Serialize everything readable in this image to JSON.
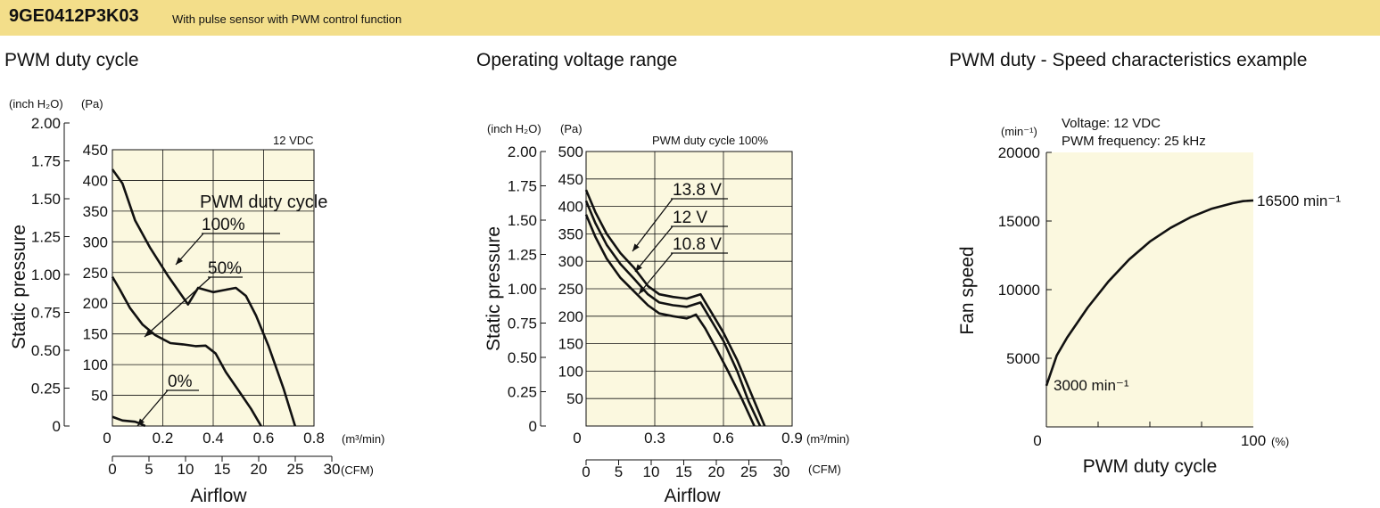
{
  "header": {
    "model": "9GE0412P3K03",
    "subtitle": "With pulse sensor with PWM control function",
    "color": "#f3de8a"
  },
  "chart_data": [
    {
      "type": "line",
      "title": "PWM duty cycle",
      "xlabel": "Airflow",
      "ylabel": "Static pressure",
      "unit_note": "12 VDC",
      "legend_title": "PWM duty cycle",
      "x_units": [
        "(m³/min)",
        "(CFM)"
      ],
      "y_units": [
        "(inch H₂O)",
        "(Pa)"
      ],
      "xlim": [
        0,
        0.8
      ],
      "ylim": [
        0,
        450
      ],
      "x_ticks_m3": [
        "0",
        "0.2",
        "0.4",
        "0.6",
        "0.8"
      ],
      "x_ticks_cfm": [
        "0",
        "5",
        "10",
        "15",
        "20",
        "25",
        "30"
      ],
      "y_ticks_pa": [
        "50",
        "100",
        "150",
        "200",
        "250",
        "300",
        "350",
        "400",
        "450"
      ],
      "y_ticks_inch": [
        "0",
        "0.25",
        "0.50",
        "0.75",
        "1.00",
        "1.25",
        "1.50",
        "1.75",
        "2.00"
      ],
      "grid": true,
      "plot_bg": "#fbf8df",
      "series": [
        {
          "name": "100%",
          "x": [
            0,
            0.04,
            0.09,
            0.15,
            0.22,
            0.3,
            0.34,
            0.4,
            0.45,
            0.49,
            0.53,
            0.57,
            0.62,
            0.68,
            0.725
          ],
          "y": [
            418,
            395,
            335,
            290,
            245,
            198,
            225,
            218,
            222,
            225,
            212,
            180,
            130,
            60,
            0
          ]
        },
        {
          "name": "50%",
          "x": [
            0,
            0.03,
            0.07,
            0.12,
            0.17,
            0.23,
            0.28,
            0.33,
            0.37,
            0.41,
            0.45,
            0.5,
            0.55,
            0.59
          ],
          "y": [
            243,
            222,
            192,
            165,
            148,
            135,
            133,
            130,
            131,
            118,
            88,
            58,
            28,
            0
          ]
        },
        {
          "name": "0%",
          "x": [
            0,
            0.04,
            0.09,
            0.11,
            0.13
          ],
          "y": [
            15,
            9,
            7,
            4,
            0
          ]
        }
      ]
    },
    {
      "type": "line",
      "title": "Operating voltage range",
      "xlabel": "Airflow",
      "ylabel": "Static pressure",
      "unit_note": "PWM duty cycle 100%",
      "x_units": [
        "(m³/min)",
        "(CFM)"
      ],
      "y_units": [
        "(inch H₂O)",
        "(Pa)"
      ],
      "xlim": [
        0,
        0.9
      ],
      "ylim": [
        0,
        500
      ],
      "x_ticks_m3": [
        "0",
        "0.3",
        "0.6",
        "0.9"
      ],
      "x_ticks_cfm": [
        "0",
        "5",
        "10",
        "15",
        "20",
        "25",
        "30"
      ],
      "y_ticks_pa": [
        "50",
        "100",
        "150",
        "200",
        "250",
        "300",
        "350",
        "400",
        "450",
        "500"
      ],
      "y_ticks_inch": [
        "0",
        "0.25",
        "0.50",
        "0.75",
        "1.00",
        "1.25",
        "1.50",
        "1.75",
        "2.00"
      ],
      "grid": true,
      "plot_bg": "#fbf8df",
      "series": [
        {
          "name": "13.8 V",
          "x": [
            0,
            0.04,
            0.09,
            0.15,
            0.21,
            0.27,
            0.32,
            0.38,
            0.44,
            0.5,
            0.55,
            0.6,
            0.66,
            0.72,
            0.78
          ],
          "y": [
            430,
            390,
            350,
            315,
            288,
            255,
            240,
            235,
            232,
            240,
            205,
            170,
            120,
            60,
            0
          ]
        },
        {
          "name": "12 V",
          "x": [
            0,
            0.04,
            0.09,
            0.15,
            0.21,
            0.27,
            0.32,
            0.38,
            0.44,
            0.5,
            0.55,
            0.6,
            0.66,
            0.71,
            0.76
          ],
          "y": [
            410,
            370,
            330,
            295,
            268,
            240,
            225,
            220,
            217,
            225,
            190,
            155,
            100,
            45,
            0
          ]
        },
        {
          "name": "10.8 V",
          "x": [
            0,
            0.04,
            0.09,
            0.15,
            0.21,
            0.27,
            0.32,
            0.38,
            0.44,
            0.48,
            0.52,
            0.57,
            0.62,
            0.68,
            0.735
          ],
          "y": [
            385,
            345,
            305,
            270,
            245,
            220,
            205,
            200,
            196,
            203,
            178,
            140,
            100,
            50,
            0
          ]
        }
      ]
    },
    {
      "type": "line",
      "title": "PWM duty - Speed characteristics example",
      "xlabel": "PWM duty cycle",
      "ylabel": "Fan speed",
      "x_unit": "(%)",
      "y_unit": "(min⁻¹)",
      "note_lines": [
        "Voltage: 12 VDC",
        "PWM frequency: 25 kHz"
      ],
      "xlim": [
        0,
        100
      ],
      "ylim": [
        0,
        20000
      ],
      "x_ticks": [
        "0",
        "100"
      ],
      "y_ticks": [
        "5000",
        "10000",
        "15000",
        "20000"
      ],
      "grid": false,
      "plot_bg": "#fbf8df",
      "annotations": {
        "start": "3000 min⁻¹",
        "end": "16500 min⁻¹"
      },
      "series": [
        {
          "x": [
            0,
            5,
            10,
            20,
            30,
            40,
            50,
            60,
            70,
            80,
            90,
            95,
            100
          ],
          "y": [
            3000,
            5200,
            6500,
            8700,
            10600,
            12200,
            13500,
            14500,
            15300,
            15900,
            16300,
            16450,
            16500
          ]
        }
      ]
    }
  ]
}
